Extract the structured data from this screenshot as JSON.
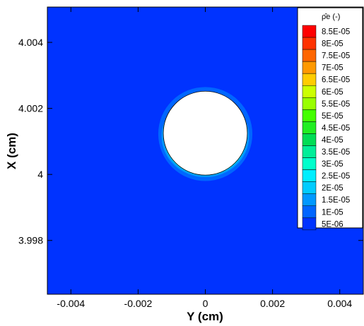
{
  "chart_data": {
    "type": "heatmap",
    "xlabel": "Y (cm)",
    "ylabel": "X (cm)",
    "xlim": [
      -0.0047,
      0.0047
    ],
    "ylim": [
      3.99637,
      4.00507
    ],
    "x_ticks": [
      "-0.004",
      "-0.002",
      "0",
      "0.002",
      "0.004"
    ],
    "y_ticks": [
      "3.998",
      "4",
      "4.002",
      "4.004"
    ],
    "background_level": "5E-06",
    "obstacle_circle": {
      "center_y_cm": 0.0,
      "center_x_cm": 4.00125,
      "radius_cm": 0.00125
    },
    "peak_value": "8.5E-05",
    "legend": {
      "title": "ρ̂e (-)",
      "placement": "top-right",
      "levels": [
        "8.5E-05",
        "8E-05",
        "7.5E-05",
        "7E-05",
        "6.5E-05",
        "6E-05",
        "5.5E-05",
        "5E-05",
        "4.5E-05",
        "4E-05",
        "3.5E-05",
        "3E-05",
        "2.5E-05",
        "2E-05",
        "1.5E-05",
        "1E-05",
        "5E-06"
      ],
      "colors": [
        "#ff0000",
        "#ff3300",
        "#ff6600",
        "#ff9900",
        "#ffcc00",
        "#ccff00",
        "#99ff00",
        "#44ff00",
        "#22ee22",
        "#00dd55",
        "#00ee99",
        "#00ffcc",
        "#00eeff",
        "#00ccff",
        "#0099ff",
        "#0066ff",
        "#0033ff"
      ]
    },
    "grid": false
  }
}
